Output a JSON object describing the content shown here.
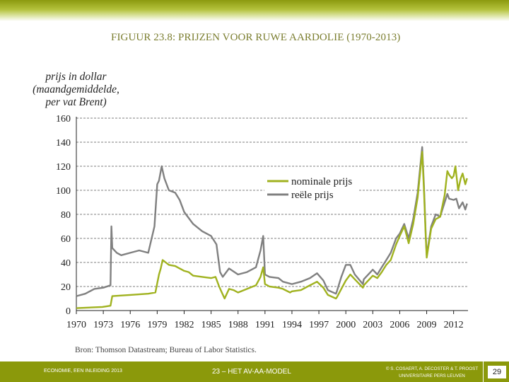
{
  "slide": {
    "figure_title": "FIGUUR 23.8: PRIJZEN VOOR RUWE AARDOLIE (1970-2013)",
    "source": "Bron: Thomson Datastream; Bureau of Labor Statistics.",
    "colors": {
      "nominal": "#a0b21f",
      "real": "#808080",
      "bar": "#8b990b"
    }
  },
  "footer": {
    "left": "ECONOMIE, EEN INLEIDING 2013",
    "center": "23 – HET AV-AA-MODEL",
    "right_line1": "© S. COSAERT, A. DECOSTER & T. PROOST",
    "right_line2": "UNIVERSITAIRE PERS LEUVEN",
    "page": "29"
  },
  "chart_data": {
    "type": "line",
    "title": "FIGUUR 23.8: PRIJZEN VOOR RUWE AARDOLIE (1970-2013)",
    "ylabel_lines": [
      "prijs in dollar",
      "(maandgemiddelde,",
      "per vat Brent)"
    ],
    "xlabel": "",
    "xlim": [
      1970,
      2013.6
    ],
    "ylim": [
      0,
      160
    ],
    "yticks": [
      0,
      20,
      40,
      60,
      80,
      100,
      120,
      140,
      160
    ],
    "xticks": [
      "1970",
      "1973",
      "1976",
      "1979",
      "1982",
      "1985",
      "1988",
      "1991",
      "1994",
      "1997",
      "2000",
      "2003",
      "2006",
      "2009",
      "2012"
    ],
    "grid": "horizontal dashed",
    "legend_position": "center-right",
    "series": [
      {
        "name": "nominale prijs",
        "color": "#a0b21f",
        "x": [
          1970.0,
          1972.9,
          1973.8,
          1974.0,
          1976.0,
          1978.0,
          1978.8,
          1979.2,
          1979.4,
          1979.6,
          1980.3,
          1981.0,
          1982.0,
          1982.5,
          1983.0,
          1984.0,
          1985.0,
          1985.5,
          1985.9,
          1986.2,
          1986.5,
          1987.0,
          1987.5,
          1988.0,
          1989.0,
          1990.0,
          1990.5,
          1990.8,
          1991.0,
          1991.5,
          1992.5,
          1993.0,
          1993.8,
          1994.0,
          1995.0,
          1996.0,
          1996.8,
          1997.5,
          1998.0,
          1998.9,
          1999.0,
          1999.5,
          2000.0,
          2000.5,
          2001.0,
          2001.9,
          2002.0,
          2003.0,
          2003.5,
          2004.0,
          2004.5,
          2005.0,
          2005.6,
          2006.0,
          2006.5,
          2007.0,
          2007.5,
          2008.0,
          2008.5,
          2008.7,
          2008.9,
          2009.0,
          2009.5,
          2010.0,
          2010.5,
          2011.0,
          2011.3,
          2011.5,
          2011.8,
          2012.0,
          2012.2,
          2012.5,
          2012.8,
          2013.0,
          2013.3,
          2013.5
        ],
        "y": [
          2,
          3,
          4,
          12,
          13,
          14,
          15,
          30,
          35,
          42,
          38,
          37,
          33,
          32,
          29,
          28,
          27,
          28,
          20,
          15,
          10,
          18,
          17,
          15,
          18,
          21,
          28,
          36,
          22,
          20,
          19,
          18,
          15,
          16,
          17,
          21,
          24,
          19,
          13,
          10,
          11,
          18,
          25,
          30,
          26,
          19,
          21,
          29,
          27,
          32,
          38,
          42,
          55,
          62,
          70,
          56,
          72,
          94,
          132,
          100,
          60,
          44,
          68,
          76,
          78,
          96,
          116,
          113,
          110,
          112,
          120,
          100,
          110,
          114,
          105,
          110
        ]
      },
      {
        "name": "reële prijs",
        "color": "#808080",
        "x": [
          1970.0,
          1971.0,
          1972.0,
          1973.0,
          1973.8,
          1973.9,
          1974.0,
          1974.5,
          1975.0,
          1976.0,
          1977.0,
          1978.0,
          1978.7,
          1979.0,
          1979.2,
          1979.5,
          1979.8,
          1980.3,
          1981.0,
          1981.5,
          1982.0,
          1983.0,
          1984.0,
          1985.0,
          1985.6,
          1986.0,
          1986.3,
          1987.0,
          1988.0,
          1989.0,
          1990.0,
          1990.5,
          1990.8,
          1991.0,
          1991.5,
          1992.5,
          1993.0,
          1994.0,
          1995.0,
          1996.0,
          1996.8,
          1997.5,
          1998.0,
          1998.9,
          1999.0,
          1999.5,
          2000.0,
          2000.5,
          2001.0,
          2001.9,
          2002.0,
          2003.0,
          2003.5,
          2004.0,
          2004.5,
          2005.0,
          2005.6,
          2006.0,
          2006.5,
          2007.0,
          2007.5,
          2008.0,
          2008.5,
          2008.7,
          2008.9,
          2009.0,
          2009.5,
          2010.0,
          2010.5,
          2011.0,
          2011.3,
          2011.5,
          2012.0,
          2012.3,
          2012.6,
          2013.0,
          2013.3,
          2013.5
        ],
        "y": [
          12,
          14,
          18,
          19,
          21,
          70,
          52,
          48,
          46,
          48,
          50,
          48,
          70,
          105,
          108,
          120,
          110,
          100,
          98,
          92,
          82,
          72,
          66,
          62,
          55,
          32,
          28,
          35,
          30,
          32,
          36,
          50,
          62,
          30,
          28,
          27,
          24,
          22,
          24,
          27,
          31,
          25,
          17,
          14,
          16,
          28,
          38,
          38,
          30,
          22,
          26,
          34,
          30,
          36,
          42,
          48,
          60,
          64,
          72,
          60,
          76,
          98,
          136,
          104,
          62,
          46,
          70,
          80,
          78,
          90,
          97,
          93,
          92,
          93,
          85,
          90,
          84,
          89
        ]
      }
    ]
  }
}
